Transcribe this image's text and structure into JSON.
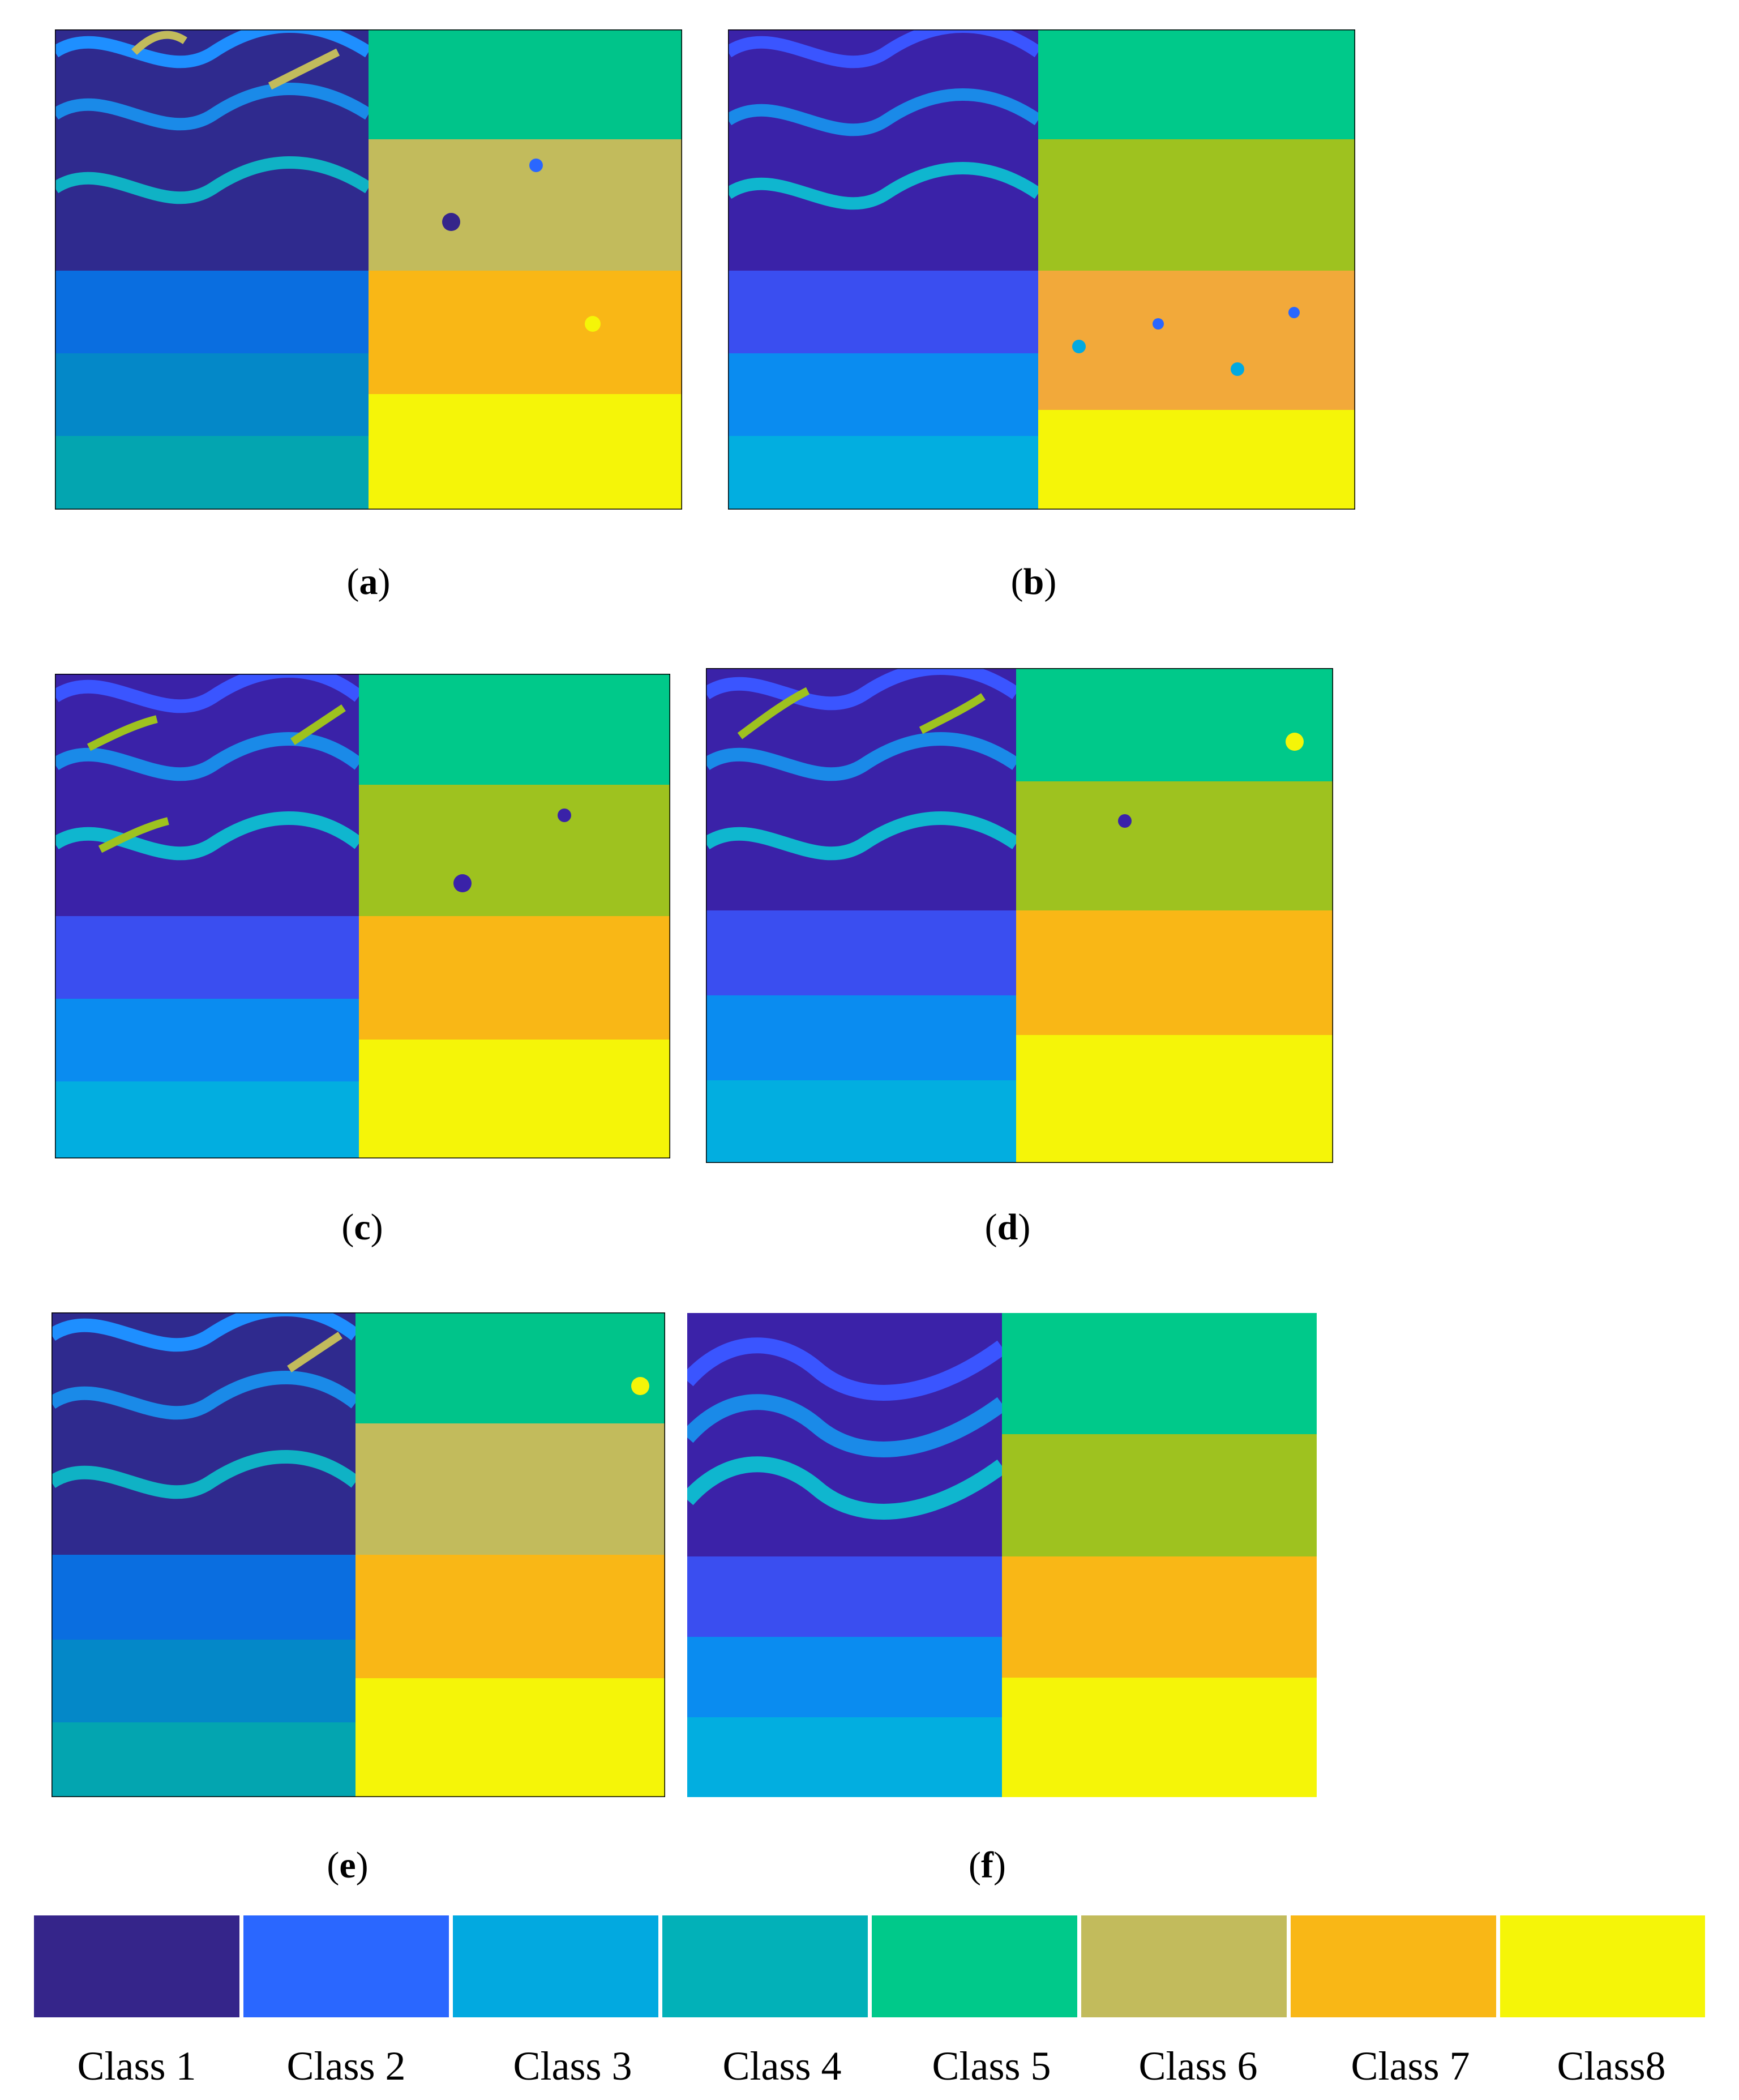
{
  "panels": [
    {
      "letter": "a",
      "open": "(",
      "close": ")"
    },
    {
      "letter": "b",
      "open": "(",
      "close": ")"
    },
    {
      "letter": "c",
      "open": "(",
      "close": ")"
    },
    {
      "letter": "d",
      "open": "(",
      "close": ")"
    },
    {
      "letter": "e",
      "open": "(",
      "close": ")"
    },
    {
      "letter": "f",
      "open": "(",
      "close": ")"
    }
  ],
  "legend": [
    {
      "label": "Class 1",
      "color": "#35258a"
    },
    {
      "label": "Class 2",
      "color": "#2a67ff"
    },
    {
      "label": "Class 3",
      "color": "#02a9e0"
    },
    {
      "label": "Class 4",
      "color": "#02b1b8"
    },
    {
      "label": "Class 5",
      "color": "#00c98a"
    },
    {
      "label": "Class 6",
      "color": "#c2bb5c"
    },
    {
      "label": "Class 7",
      "color": "#f9b716"
    },
    {
      "label": "Class8",
      "color": "#f5f508"
    }
  ]
}
